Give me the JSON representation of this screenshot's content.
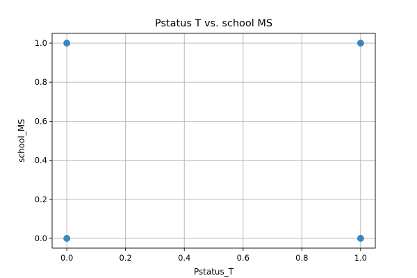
{
  "chart_data": {
    "type": "scatter",
    "title": "Pstatus T vs. school MS",
    "xlabel": "Pstatus_T",
    "ylabel": "school_MS",
    "xlim": [
      -0.05,
      1.05
    ],
    "ylim": [
      -0.05,
      1.05
    ],
    "xticks": [
      0.0,
      0.2,
      0.4,
      0.6,
      0.8,
      1.0
    ],
    "yticks": [
      0.0,
      0.2,
      0.4,
      0.6,
      0.8,
      1.0
    ],
    "xtick_labels": [
      "0.0",
      "0.2",
      "0.4",
      "0.6",
      "0.8",
      "1.0"
    ],
    "ytick_labels": [
      "0.0",
      "0.2",
      "0.4",
      "0.6",
      "0.8",
      "1.0"
    ],
    "grid": true,
    "color": "#1f77b4",
    "points": [
      {
        "x": 0,
        "y": 1
      },
      {
        "x": 1,
        "y": 1
      },
      {
        "x": 0,
        "y": 0
      },
      {
        "x": 1,
        "y": 0
      }
    ]
  }
}
